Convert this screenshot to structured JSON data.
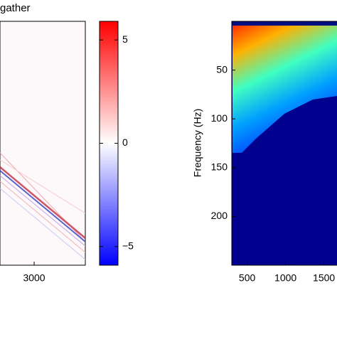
{
  "chart_data": [
    {
      "type": "image",
      "title": "gather",
      "xlim": [
        0,
        4090
      ],
      "xticks": [
        3000
      ]
    },
    {
      "type": "colorbar",
      "clim": [
        -5.9,
        5.9
      ],
      "yticks": [
        5,
        0,
        {
          "value": -5,
          "label": "−5"
        }
      ]
    },
    {
      "type": "image",
      "ylabel": "Frequency (Hz)",
      "xlim": [
        300,
        1670
      ],
      "xticks": [
        500,
        1000,
        1500
      ],
      "ylim": [
        0,
        250
      ],
      "y_inverted": true,
      "yticks": [
        50,
        100,
        150,
        200
      ]
    }
  ]
}
